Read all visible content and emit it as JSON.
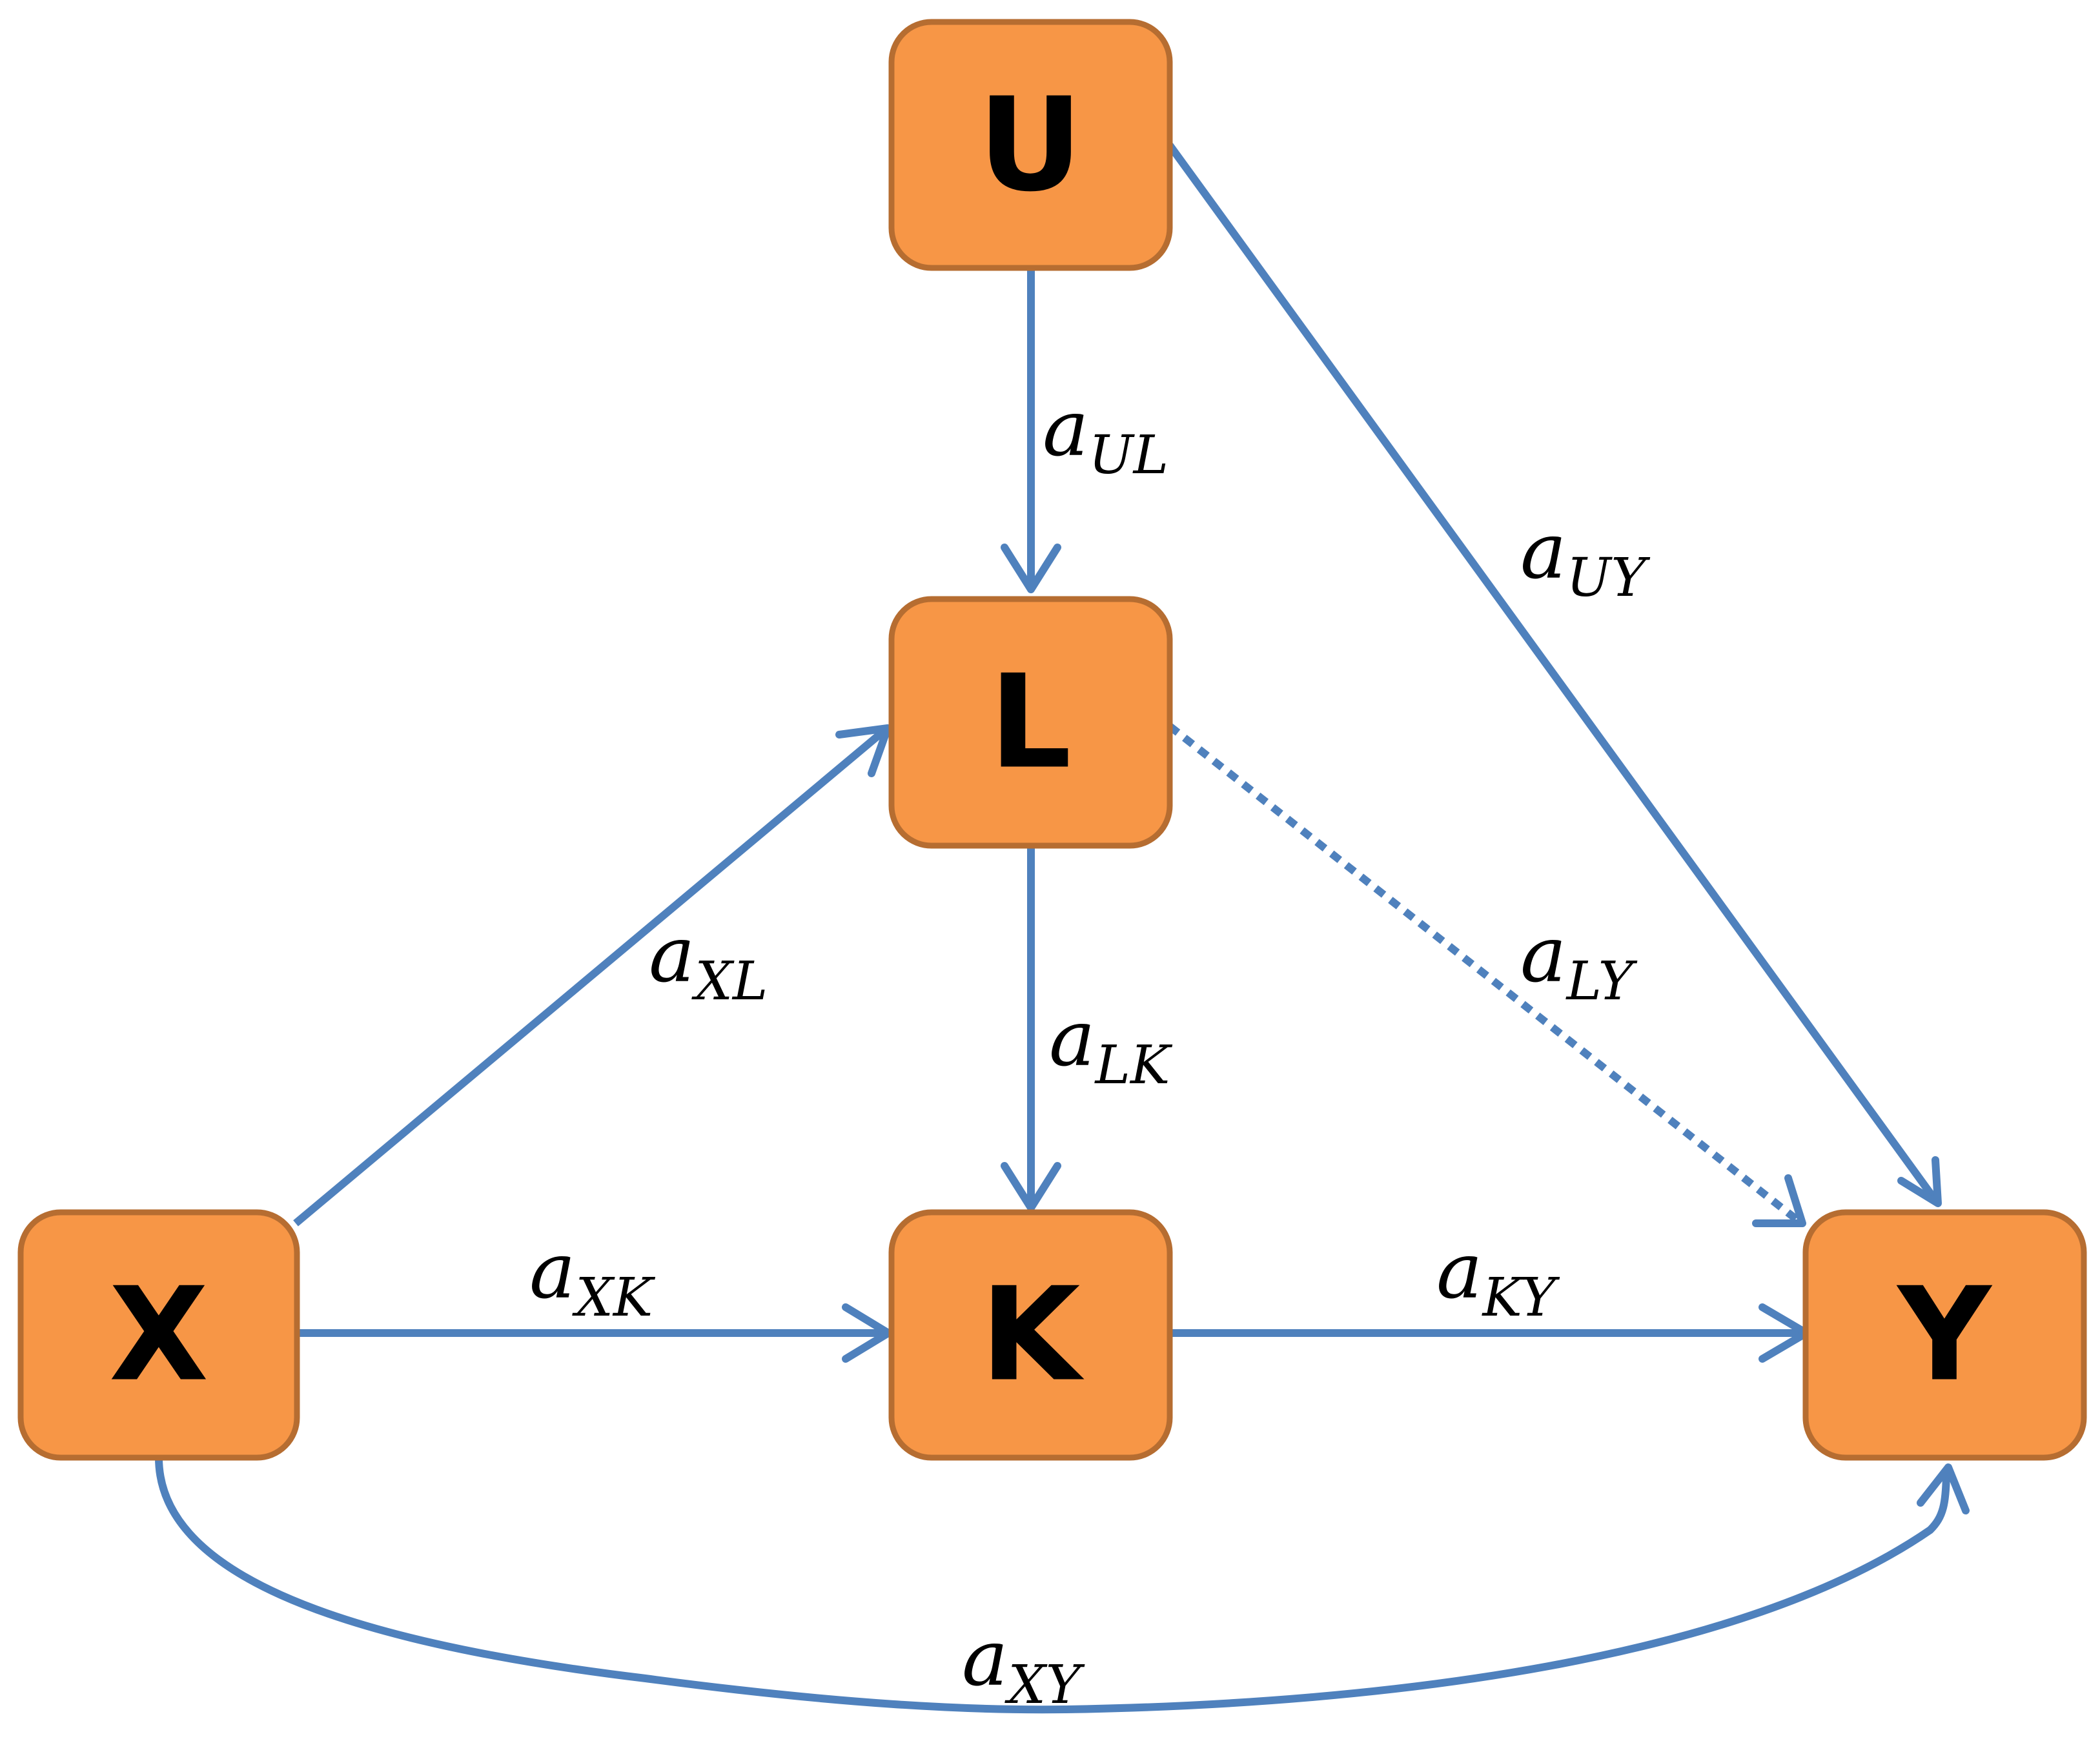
{
  "colors": {
    "node_fill": "#F79646",
    "node_border": "#B66D31",
    "edge": "#4F81BD",
    "text": "#000000"
  },
  "nodes": {
    "U": "U",
    "L": "L",
    "X": "X",
    "K": "K",
    "Y": "Y"
  },
  "edges": [
    {
      "id": "UL",
      "from": "U",
      "to": "L",
      "style": "solid",
      "label_main": "a",
      "label_sub": "UL"
    },
    {
      "id": "UY",
      "from": "U",
      "to": "Y",
      "style": "solid",
      "label_main": "a",
      "label_sub": "UY"
    },
    {
      "id": "XL",
      "from": "X",
      "to": "L",
      "style": "solid",
      "label_main": "a",
      "label_sub": "XL"
    },
    {
      "id": "LK",
      "from": "L",
      "to": "K",
      "style": "solid",
      "label_main": "a",
      "label_sub": "LK"
    },
    {
      "id": "LY",
      "from": "L",
      "to": "Y",
      "style": "dotted",
      "label_main": "a",
      "label_sub": "LY"
    },
    {
      "id": "XK",
      "from": "X",
      "to": "K",
      "style": "solid",
      "label_main": "a",
      "label_sub": "XK"
    },
    {
      "id": "KY",
      "from": "K",
      "to": "Y",
      "style": "solid",
      "label_main": "a",
      "label_sub": "KY"
    },
    {
      "id": "XY",
      "from": "X",
      "to": "Y",
      "style": "solid",
      "label_main": "a",
      "label_sub": "XY"
    }
  ]
}
